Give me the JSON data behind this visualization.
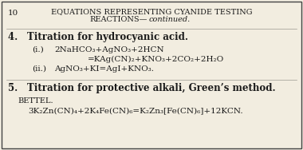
{
  "bg_color": "#f2ede0",
  "border_color": "#444444",
  "text_color": "#1a1a1a",
  "page_number": "10",
  "title_line1_normal": "EQUATIONS REPRESENTING CYANIDE TESTING",
  "title_line2_normal": "REACTIONS—",
  "title_line2_italic": "continued.",
  "section4_heading": "4. Titration for hydrocyanic acid.",
  "eq_i_label": "(i.)",
  "eq_i_line1": "2NaHCO₃+AgNO₃+2HCN",
  "eq_i_line2": "=KAg(CN)₂+KNO₃+2CO₂+2H₂O",
  "eq_ii_label": "(ii.)",
  "eq_ii": "AgNO₃+KI=AgI+KNO₃.",
  "section5_heading": "5. Titration for protective alkali, Green’s method.",
  "bettel_label": "BETTEL.",
  "eq_bettel": "3K₂Zn(CN)₄+2K₄Fe(CN)₆=K₂Zn₃[Fe(CN)₆]+12KCN.",
  "fig_width": 3.8,
  "fig_height": 1.88,
  "dpi": 100
}
